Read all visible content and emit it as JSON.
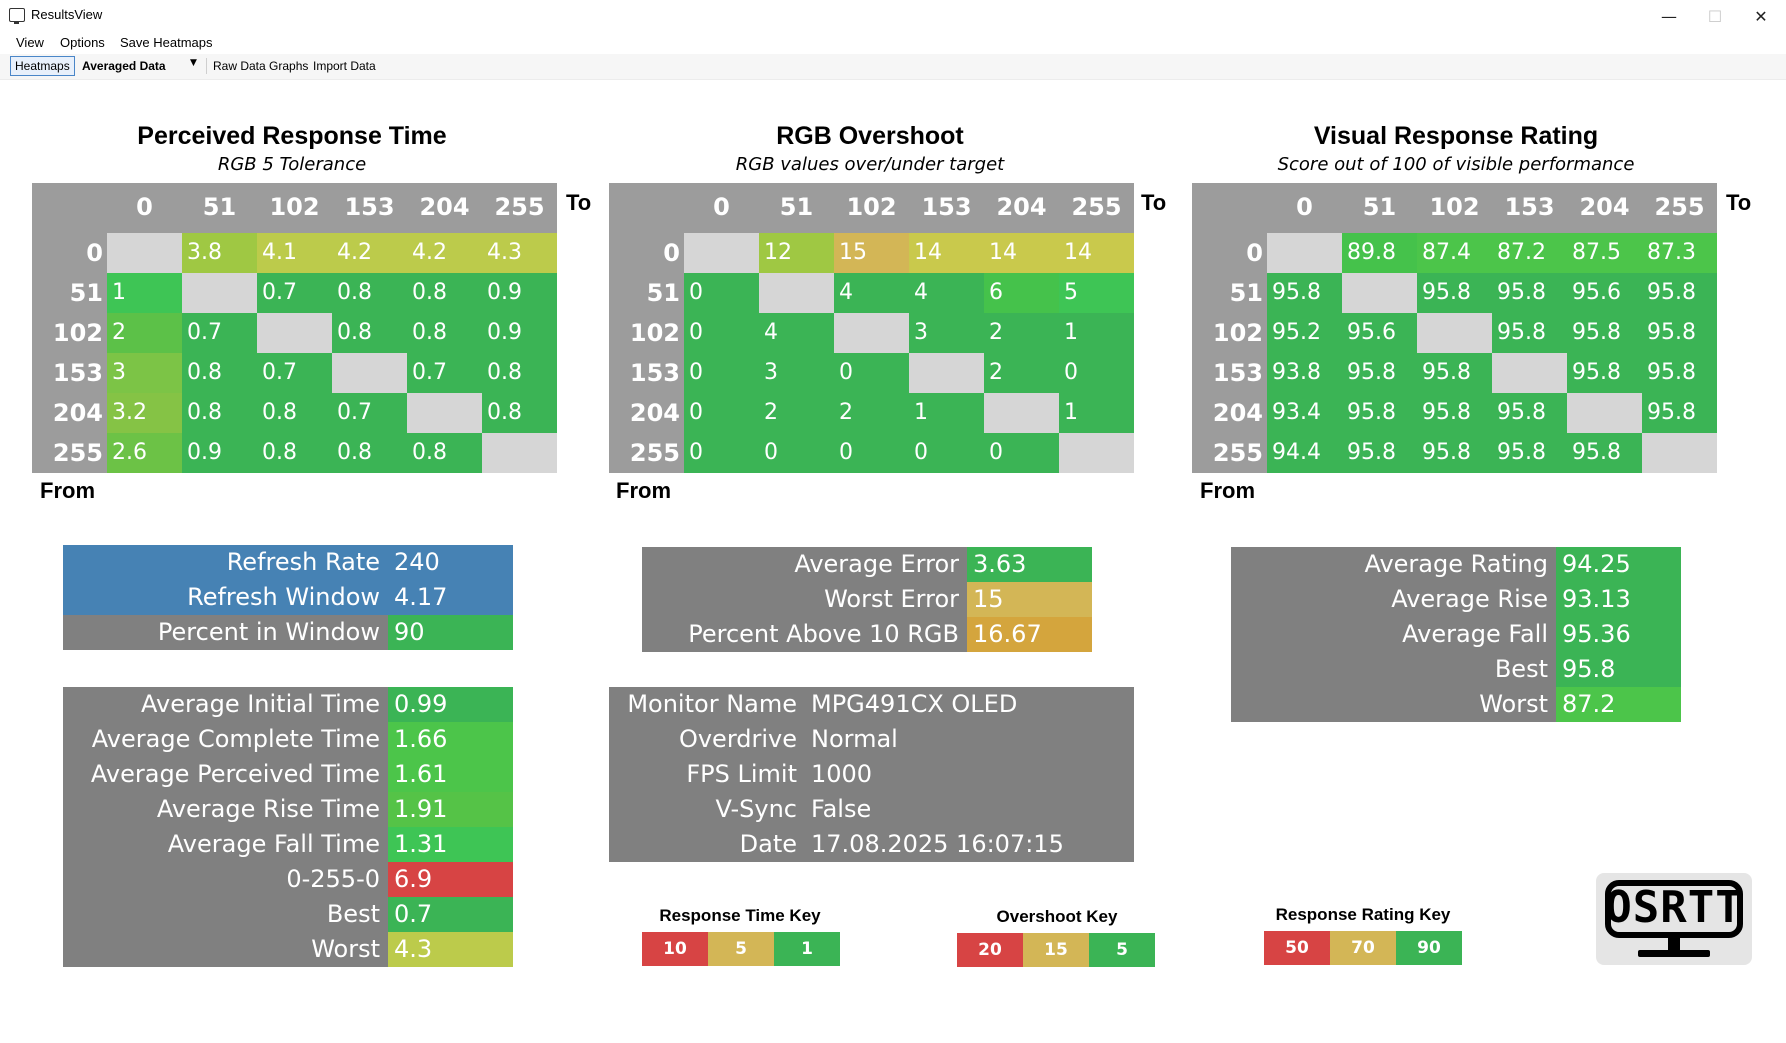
{
  "window": {
    "title": "ResultsView",
    "minimize_glyph": "—",
    "maximize_glyph": "☐",
    "close_glyph": "✕"
  },
  "menu": [
    "View",
    "Options",
    "Save Heatmaps"
  ],
  "toolbar": {
    "tab_heatmaps": "Heatmaps",
    "view_selected": "Averaged Data",
    "raw_data_graphs": "Raw Data Graphs",
    "import_data": "Import Data"
  },
  "heatmaps": [
    {
      "id": "perceived",
      "title": "Perceived Response Time",
      "subtitle": "RGB 5 Tolerance",
      "cols": [
        "0",
        "51",
        "102",
        "153",
        "204",
        "255"
      ],
      "rows": [
        "0",
        "51",
        "102",
        "153",
        "204",
        "255"
      ],
      "to_label": "To",
      "from_label": "From",
      "cells": [
        [
          "",
          "3.8",
          "4.1",
          "4.2",
          "4.2",
          "4.3"
        ],
        [
          "1",
          "",
          "0.7",
          "0.8",
          "0.8",
          "0.9"
        ],
        [
          "2",
          "0.7",
          "",
          "0.8",
          "0.8",
          "0.9"
        ],
        [
          "3",
          "0.8",
          "0.7",
          "",
          "0.7",
          "0.8"
        ],
        [
          "3.2",
          "0.8",
          "0.8",
          "0.7",
          "",
          "0.8"
        ],
        [
          "2.6",
          "0.9",
          "0.8",
          "0.8",
          "0.8",
          ""
        ]
      ],
      "colors": [
        [
          "#d6d6d6",
          "#9fc843",
          "#bccb4b",
          "#bccb4b",
          "#bccb4b",
          "#bccb4b"
        ],
        [
          "#3ec555",
          "#d6d6d6",
          "#3bb455",
          "#3bb455",
          "#3bb455",
          "#3bb455"
        ],
        [
          "#5cc148",
          "#3bb455",
          "#d6d6d6",
          "#3bb455",
          "#3bb455",
          "#3bb455"
        ],
        [
          "#7cc446",
          "#3bb455",
          "#3bb455",
          "#d6d6d6",
          "#3bb455",
          "#3bb455"
        ],
        [
          "#85c345",
          "#3bb455",
          "#3bb455",
          "#3bb455",
          "#d6d6d6",
          "#3bb455"
        ],
        [
          "#6cc246",
          "#3bb455",
          "#3bb455",
          "#3bb455",
          "#3bb455",
          "#d6d6d6"
        ]
      ]
    },
    {
      "id": "overshoot",
      "title": "RGB Overshoot",
      "subtitle": "RGB values over/under target",
      "cols": [
        "0",
        "51",
        "102",
        "153",
        "204",
        "255"
      ],
      "rows": [
        "0",
        "51",
        "102",
        "153",
        "204",
        "255"
      ],
      "to_label": "To",
      "from_label": "From",
      "cells": [
        [
          "",
          "12",
          "15",
          "14",
          "14",
          "14"
        ],
        [
          "0",
          "",
          "4",
          "4",
          "6",
          "5"
        ],
        [
          "0",
          "4",
          "",
          "3",
          "2",
          "1"
        ],
        [
          "0",
          "3",
          "0",
          "",
          "2",
          "0"
        ],
        [
          "0",
          "2",
          "2",
          "1",
          "",
          "1"
        ],
        [
          "0",
          "0",
          "0",
          "0",
          "0",
          ""
        ]
      ],
      "colors": [
        [
          "#d6d6d6",
          "#9fc843",
          "#d3b656",
          "#c9c94c",
          "#c9c94c",
          "#c9c94c"
        ],
        [
          "#3bb455",
          "#d6d6d6",
          "#3bb455",
          "#3bb455",
          "#45c24b",
          "#3ec555"
        ],
        [
          "#3bb455",
          "#3bb455",
          "#d6d6d6",
          "#3bb455",
          "#3bb455",
          "#3bb455"
        ],
        [
          "#3bb455",
          "#3bb455",
          "#3bb455",
          "#d6d6d6",
          "#3bb455",
          "#3bb455"
        ],
        [
          "#3bb455",
          "#3bb455",
          "#3bb455",
          "#3bb455",
          "#d6d6d6",
          "#3bb455"
        ],
        [
          "#3bb455",
          "#3bb455",
          "#3bb455",
          "#3bb455",
          "#3bb455",
          "#d6d6d6"
        ]
      ]
    },
    {
      "id": "rating",
      "title": "Visual Response Rating",
      "subtitle": "Score out of 100 of visible performance",
      "cols": [
        "0",
        "51",
        "102",
        "153",
        "204",
        "255"
      ],
      "rows": [
        "0",
        "51",
        "102",
        "153",
        "204",
        "255"
      ],
      "to_label": "To",
      "from_label": "From",
      "cells": [
        [
          "",
          "89.8",
          "87.4",
          "87.2",
          "87.5",
          "87.3"
        ],
        [
          "95.8",
          "",
          "95.8",
          "95.8",
          "95.6",
          "95.8"
        ],
        [
          "95.2",
          "95.6",
          "",
          "95.8",
          "95.8",
          "95.8"
        ],
        [
          "93.8",
          "95.8",
          "95.8",
          "",
          "95.8",
          "95.8"
        ],
        [
          "93.4",
          "95.8",
          "95.8",
          "95.8",
          "",
          "95.8"
        ],
        [
          "94.4",
          "95.8",
          "95.8",
          "95.8",
          "95.8",
          ""
        ]
      ],
      "colors": [
        [
          "#d6d6d6",
          "#45c24b",
          "#4cc54a",
          "#4cc54a",
          "#4cc54a",
          "#4cc54a"
        ],
        [
          "#3bb455",
          "#d6d6d6",
          "#3bb455",
          "#3bb455",
          "#3bb455",
          "#3bb455"
        ],
        [
          "#3bb455",
          "#3bb455",
          "#d6d6d6",
          "#3bb455",
          "#3bb455",
          "#3bb455"
        ],
        [
          "#3bb455",
          "#3bb455",
          "#3bb455",
          "#d6d6d6",
          "#3bb455",
          "#3bb455"
        ],
        [
          "#3bb455",
          "#3bb455",
          "#3bb455",
          "#3bb455",
          "#d6d6d6",
          "#3bb455"
        ],
        [
          "#3bb455",
          "#3bb455",
          "#3bb455",
          "#3bb455",
          "#3bb455",
          "#d6d6d6"
        ]
      ]
    }
  ],
  "refresh_table": [
    {
      "label": "Refresh Rate",
      "value": "240",
      "label_bg": "#4682b4",
      "value_bg": "#4682b4"
    },
    {
      "label": "Refresh Window",
      "value": "4.17",
      "label_bg": "#4682b4",
      "value_bg": "#4682b4"
    },
    {
      "label": "Percent in Window",
      "value": "90",
      "label_bg": "#808080",
      "value_bg": "#3bb455"
    }
  ],
  "timing_table": [
    {
      "label": "Average Initial Time",
      "value": "0.99",
      "value_bg": "#3bb455"
    },
    {
      "label": "Average Complete Time",
      "value": "1.66",
      "value_bg": "#4cc54a"
    },
    {
      "label": "Average Perceived Time",
      "value": "1.61",
      "value_bg": "#4cc54a"
    },
    {
      "label": "Average Rise Time",
      "value": "1.91",
      "value_bg": "#55c347"
    },
    {
      "label": "Average Fall Time",
      "value": "1.31",
      "value_bg": "#3ec555"
    },
    {
      "label": "0-255-0",
      "value": "6.9",
      "value_bg": "#d74444"
    },
    {
      "label": "Best",
      "value": "0.7",
      "value_bg": "#3bb455"
    },
    {
      "label": "Worst",
      "value": "4.3",
      "value_bg": "#bccb4b"
    }
  ],
  "error_table": [
    {
      "label": "Average Error",
      "value": "3.63",
      "value_bg": "#3bb455"
    },
    {
      "label": "Worst Error",
      "value": "15",
      "value_bg": "#d3b656"
    },
    {
      "label": "Percent Above 10 RGB",
      "value": "16.67",
      "value_bg": "#d4a53d"
    }
  ],
  "monitor_table": [
    {
      "label": "Monitor Name",
      "value": "MPG491CX OLED"
    },
    {
      "label": "Overdrive",
      "value": "Normal"
    },
    {
      "label": "FPS Limit",
      "value": "1000"
    },
    {
      "label": "V-Sync",
      "value": "False"
    },
    {
      "label": "Date",
      "value": "17.08.2025 16:07:15"
    }
  ],
  "rating_table": [
    {
      "label": "Average Rating",
      "value": "94.25",
      "value_bg": "#3bb455"
    },
    {
      "label": "Average Rise",
      "value": "93.13",
      "value_bg": "#3bb455"
    },
    {
      "label": "Average Fall",
      "value": "95.36",
      "value_bg": "#3bb455"
    },
    {
      "label": "Best",
      "value": "95.8",
      "value_bg": "#3bb455"
    },
    {
      "label": "Worst",
      "value": "87.2",
      "value_bg": "#4cc54a"
    }
  ],
  "keys": [
    {
      "title": "Response Time Key",
      "items": [
        {
          "label": "10",
          "color": "#d74444"
        },
        {
          "label": "5",
          "color": "#d3b656"
        },
        {
          "label": "1",
          "color": "#3bb455"
        }
      ]
    },
    {
      "title": "Overshoot Key",
      "items": [
        {
          "label": "20",
          "color": "#d74444"
        },
        {
          "label": "15",
          "color": "#d3b656"
        },
        {
          "label": "5",
          "color": "#3bb455"
        }
      ]
    },
    {
      "title": "Response Rating Key",
      "items": [
        {
          "label": "50",
          "color": "#d74444"
        },
        {
          "label": "70",
          "color": "#d3b656"
        },
        {
          "label": "90",
          "color": "#3bb455"
        }
      ]
    }
  ],
  "logo": {
    "text": "OSRTT"
  },
  "colors": {
    "table_gray": "#808080",
    "heatmap_header": "#9c9c9c",
    "blue": "#4682b4"
  }
}
